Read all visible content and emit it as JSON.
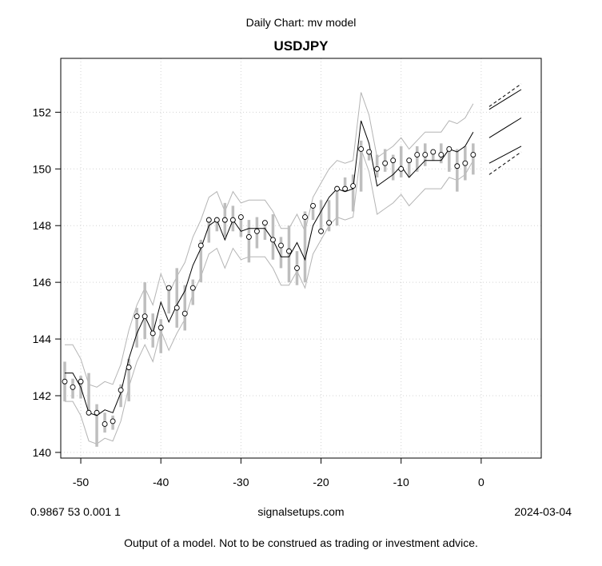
{
  "header": {
    "title": "Daily Chart: mv model",
    "subtitle": "USDJPY"
  },
  "footer": {
    "left": "0.9867 53 0.001 1",
    "center": "signalsetups.com",
    "right": "2024-03-04",
    "disclaimer": "Output of a model.  Not to be construed as trading or investment advice."
  },
  "colors": {
    "model_line": "#000000",
    "band": "#b4b4b4",
    "range_bar": "#bebebe",
    "grid": "#d3d3d3"
  },
  "chart_data": {
    "type": "line",
    "title": "Daily Chart: mv model",
    "subtitle": "USDJPY",
    "xlim": [
      -52.5,
      7.5
    ],
    "ylim": [
      139.8,
      153.9
    ],
    "x_ticks": [
      -50,
      -40,
      -30,
      -20,
      -10,
      0
    ],
    "y_ticks": [
      140,
      142,
      144,
      146,
      148,
      150,
      152
    ],
    "grid": true,
    "x": [
      -52,
      -51,
      -50,
      -49,
      -48,
      -47,
      -46,
      -45,
      -44,
      -43,
      -42,
      -41,
      -40,
      -39,
      -38,
      -37,
      -36,
      -35,
      -34,
      -33,
      -32,
      -31,
      -30,
      -29,
      -28,
      -27,
      -26,
      -25,
      -24,
      -23,
      -22,
      -21,
      -20,
      -19,
      -18,
      -17,
      -16,
      -15,
      -14,
      -13,
      -12,
      -11,
      -10,
      -9,
      -8,
      -7,
      -6,
      -5,
      -4,
      -3,
      -2,
      -1
    ],
    "series": [
      {
        "role": "close points",
        "values": [
          142.5,
          142.3,
          142.5,
          141.4,
          141.4,
          141.0,
          141.1,
          142.2,
          143.0,
          144.8,
          144.8,
          144.2,
          144.4,
          145.8,
          145.1,
          144.9,
          145.8,
          147.3,
          148.2,
          148.2,
          148.2,
          148.2,
          148.3,
          147.6,
          147.8,
          148.1,
          147.5,
          147.3,
          147.1,
          146.5,
          148.3,
          148.7,
          147.8,
          148.1,
          149.3,
          149.3,
          149.4,
          150.7,
          150.6,
          150.0,
          150.2,
          150.3,
          150.0,
          150.3,
          150.5,
          150.5,
          150.6,
          150.5,
          150.7,
          150.1,
          150.2,
          150.5
        ]
      },
      {
        "role": "daily range",
        "low": [
          141.8,
          141.9,
          141.9,
          141.3,
          140.2,
          140.7,
          140.8,
          141.6,
          141.8,
          143.7,
          144.0,
          143.7,
          143.5,
          144.9,
          144.4,
          144.3,
          145.2,
          146.0,
          147.4,
          147.8,
          147.6,
          147.8,
          147.6,
          146.7,
          147.2,
          147.5,
          146.8,
          146.5,
          146.0,
          145.9,
          146.0,
          148.2,
          147.7,
          147.8,
          148.0,
          149.2,
          148.5,
          149.2,
          150.3,
          149.7,
          149.9,
          149.6,
          149.7,
          149.7,
          149.9,
          150.1,
          150.3,
          150.2,
          149.9,
          149.2,
          149.6,
          149.8
        ],
        "high": [
          143.2,
          142.6,
          142.7,
          142.8,
          141.7,
          141.4,
          141.3,
          142.4,
          143.3,
          145.1,
          146.0,
          144.9,
          144.7,
          145.9,
          146.5,
          145.9,
          146.1,
          147.5,
          148.3,
          148.3,
          148.8,
          148.7,
          148.4,
          148.2,
          148.3,
          148.2,
          148.4,
          147.6,
          148.0,
          147.1,
          148.5,
          148.8,
          148.9,
          148.9,
          149.4,
          149.7,
          149.8,
          151.0,
          150.7,
          150.5,
          150.7,
          150.5,
          150.8,
          150.4,
          150.8,
          150.9,
          150.7,
          150.9,
          150.8,
          150.7,
          150.8,
          150.9
        ]
      },
      {
        "role": "model line",
        "values": [
          142.8,
          142.8,
          142.3,
          141.4,
          141.3,
          141.5,
          141.4,
          142.1,
          143.3,
          144.2,
          144.8,
          144.2,
          145.3,
          144.6,
          145.2,
          145.7,
          146.6,
          147.2,
          148.0,
          148.2,
          147.5,
          148.2,
          147.8,
          147.9,
          147.9,
          147.9,
          147.5,
          146.9,
          146.9,
          147.4,
          146.8,
          148.0,
          148.5,
          149.0,
          149.3,
          149.2,
          149.3,
          151.7,
          150.9,
          149.4,
          149.6,
          149.8,
          150.1,
          149.7,
          150.0,
          150.3,
          150.3,
          150.3,
          150.7,
          150.6,
          150.8,
          151.3
        ]
      },
      {
        "role": "upper band",
        "values": [
          143.8,
          143.8,
          143.3,
          142.4,
          142.3,
          142.5,
          142.4,
          143.1,
          144.3,
          145.2,
          145.8,
          145.2,
          146.3,
          145.6,
          146.2,
          146.7,
          147.6,
          148.2,
          149.0,
          149.2,
          148.5,
          149.2,
          148.8,
          148.9,
          148.9,
          148.9,
          148.5,
          147.9,
          147.9,
          148.4,
          147.8,
          149.0,
          149.5,
          150.0,
          150.3,
          150.2,
          150.3,
          152.7,
          151.9,
          150.4,
          150.6,
          150.8,
          151.1,
          150.7,
          151.0,
          151.3,
          151.3,
          151.3,
          151.7,
          151.6,
          151.8,
          152.3
        ]
      },
      {
        "role": "lower band",
        "values": [
          141.8,
          141.8,
          141.3,
          140.4,
          140.3,
          140.5,
          140.4,
          141.1,
          142.3,
          143.2,
          143.8,
          143.2,
          144.3,
          143.6,
          144.2,
          144.7,
          145.6,
          146.2,
          147.0,
          147.2,
          146.5,
          147.2,
          146.8,
          146.9,
          146.9,
          146.9,
          146.5,
          145.9,
          145.9,
          146.4,
          145.8,
          147.0,
          147.5,
          148.0,
          148.3,
          148.2,
          148.3,
          150.7,
          149.9,
          148.4,
          148.6,
          148.8,
          149.1,
          148.7,
          149.0,
          149.3,
          149.3,
          149.3,
          149.7,
          149.6,
          149.8,
          150.3
        ]
      }
    ],
    "forecast": {
      "x": [
        1,
        5
      ],
      "mid": [
        151.1,
        151.8
      ],
      "upper_solid": [
        152.1,
        152.8
      ],
      "upper_dashed": [
        152.2,
        153.0
      ],
      "lower_solid": [
        150.2,
        150.8
      ],
      "lower_dashed": [
        149.8,
        150.6
      ]
    }
  }
}
